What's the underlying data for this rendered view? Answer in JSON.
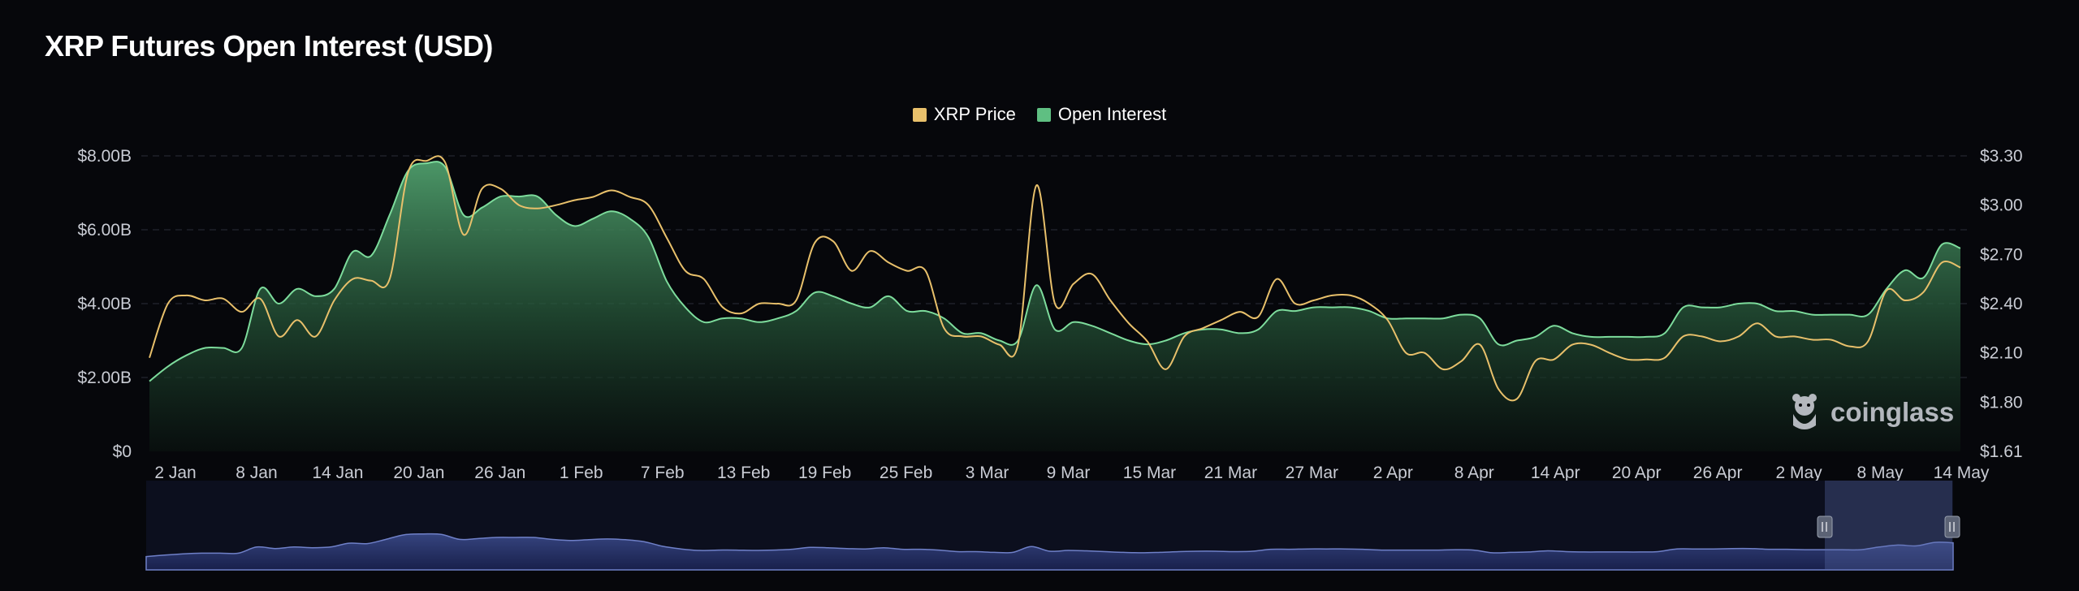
{
  "chart_data": {
    "type": "line",
    "title": "XRP Futures Open Interest (USD)",
    "legend": [
      {
        "name": "XRP Price",
        "color": "#e8c06b"
      },
      {
        "name": "Open Interest",
        "color": "#5fbf82"
      }
    ],
    "x_labels": [
      "2 Jan",
      "8 Jan",
      "14 Jan",
      "20 Jan",
      "26 Jan",
      "1 Feb",
      "7 Feb",
      "13 Feb",
      "19 Feb",
      "25 Feb",
      "3 Mar",
      "9 Mar",
      "15 Mar",
      "21 Mar",
      "27 Mar",
      "2 Apr",
      "8 Apr",
      "14 Apr",
      "20 Apr",
      "26 Apr",
      "2 May",
      "8 May",
      "14 May"
    ],
    "y_left": {
      "ticks": [
        "$0",
        "$2.00B",
        "$4.00B",
        "$6.00B",
        "$8.00B"
      ],
      "range": [
        0,
        8
      ]
    },
    "y_right": {
      "ticks": [
        "$1.61",
        "$1.80",
        "$2.10",
        "$2.40",
        "$2.70",
        "$3.00",
        "$3.30"
      ],
      "values": [
        1.61,
        1.8,
        2.1,
        2.4,
        2.7,
        3.0,
        3.3
      ]
    },
    "series": [
      {
        "name": "Open Interest",
        "unit": "B USD",
        "values": [
          1.9,
          2.3,
          2.6,
          2.8,
          2.8,
          2.8,
          4.4,
          4.0,
          4.4,
          4.2,
          4.4,
          5.4,
          5.3,
          6.4,
          7.6,
          7.8,
          7.7,
          6.4,
          6.6,
          6.9,
          6.9,
          6.9,
          6.4,
          6.1,
          6.3,
          6.5,
          6.3,
          5.8,
          4.6,
          3.9,
          3.5,
          3.6,
          3.6,
          3.5,
          3.6,
          3.8,
          4.3,
          4.2,
          4.0,
          3.9,
          4.2,
          3.8,
          3.8,
          3.6,
          3.2,
          3.2,
          3.0,
          3.0,
          4.5,
          3.3,
          3.5,
          3.4,
          3.2,
          3.0,
          2.9,
          3.0,
          3.2,
          3.3,
          3.3,
          3.2,
          3.3,
          3.8,
          3.8,
          3.9,
          3.9,
          3.9,
          3.8,
          3.6,
          3.6,
          3.6,
          3.6,
          3.7,
          3.6,
          2.9,
          3.0,
          3.1,
          3.4,
          3.2,
          3.1,
          3.1,
          3.1,
          3.1,
          3.2,
          3.9,
          3.9,
          3.9,
          4.0,
          4.0,
          3.8,
          3.8,
          3.7,
          3.7,
          3.7,
          3.7,
          4.4,
          4.9,
          4.7,
          5.6,
          5.5
        ]
      },
      {
        "name": "XRP Price",
        "unit": "USD",
        "values": [
          2.07,
          2.4,
          2.45,
          2.42,
          2.43,
          2.35,
          2.43,
          2.2,
          2.3,
          2.2,
          2.42,
          2.55,
          2.54,
          2.55,
          3.2,
          3.27,
          3.26,
          2.82,
          3.1,
          3.1,
          3.0,
          2.98,
          3.0,
          3.03,
          3.05,
          3.09,
          3.05,
          3.0,
          2.8,
          2.6,
          2.55,
          2.38,
          2.34,
          2.4,
          2.4,
          2.42,
          2.77,
          2.78,
          2.6,
          2.72,
          2.65,
          2.6,
          2.6,
          2.25,
          2.2,
          2.2,
          2.15,
          2.15,
          3.12,
          2.4,
          2.52,
          2.58,
          2.42,
          2.28,
          2.17,
          2.0,
          2.2,
          2.25,
          2.3,
          2.35,
          2.32,
          2.55,
          2.4,
          2.42,
          2.45,
          2.45,
          2.4,
          2.3,
          2.1,
          2.1,
          2.0,
          2.05,
          2.15,
          1.88,
          1.82,
          2.05,
          2.06,
          2.15,
          2.15,
          2.1,
          2.06,
          2.06,
          2.07,
          2.2,
          2.2,
          2.17,
          2.2,
          2.28,
          2.2,
          2.2,
          2.18,
          2.18,
          2.14,
          2.17,
          2.48,
          2.42,
          2.47,
          2.65,
          2.62
        ]
      }
    ]
  },
  "watermark": {
    "text": "coinglass",
    "icon": "coinglass-mascot-icon"
  },
  "navigator": {
    "label": "range-navigator"
  }
}
